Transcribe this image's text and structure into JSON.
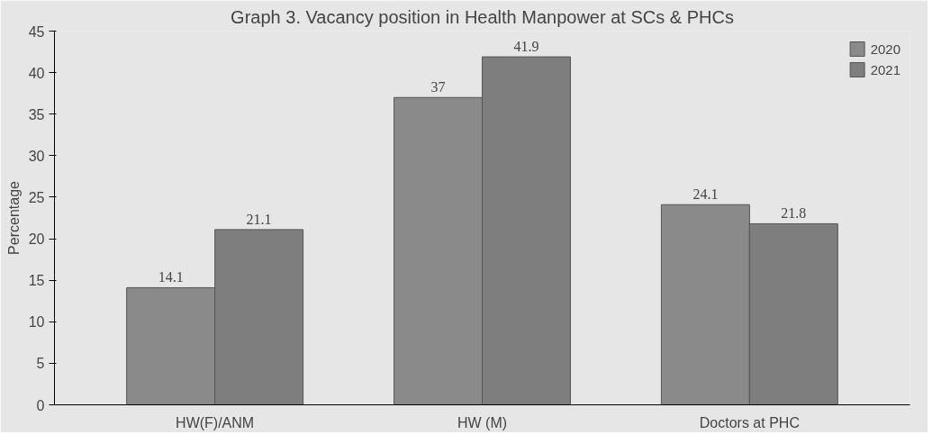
{
  "chart_data": {
    "type": "bar",
    "title": "Graph 3. Vacancy position in Health Manpower at SCs & PHCs",
    "ylabel": "Percentage",
    "categories": [
      "HW(F)/ANM",
      "HW (M)",
      "Doctors at PHC"
    ],
    "series": [
      {
        "name": "2020",
        "color": "#8a8a8a",
        "values": [
          14.1,
          37,
          24.1
        ]
      },
      {
        "name": "2021",
        "color": "#7e7e7e",
        "values": [
          21.1,
          41.9,
          21.8
        ]
      }
    ],
    "ylim": [
      0,
      45
    ],
    "yticks": [
      0,
      5,
      10,
      15,
      20,
      25,
      30,
      35,
      40,
      45
    ],
    "legend": "top right",
    "data_labels": true
  }
}
